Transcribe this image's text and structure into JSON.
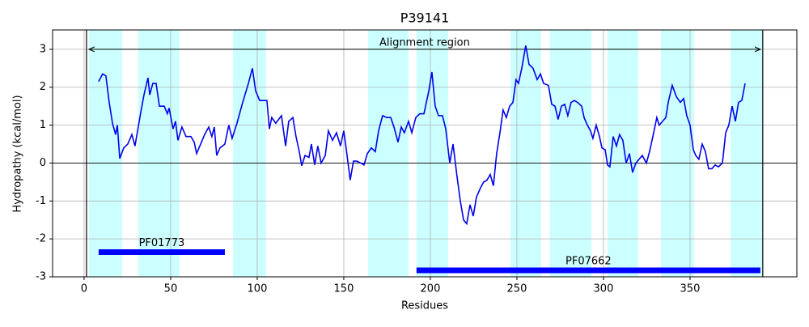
{
  "chart_data": {
    "type": "line",
    "title": "P39141",
    "xlabel": "Residues",
    "ylabel": "Hydropathy (kcal/mol)",
    "xlim": [
      -18.2,
      411.7
    ],
    "ylim": [
      -3,
      3.51
    ],
    "xticks": [
      0,
      50,
      100,
      150,
      200,
      250,
      300,
      350
    ],
    "yticks": [
      -3,
      -2,
      -1,
      0,
      1,
      2,
      3
    ],
    "grid": true,
    "x": [
      8.4,
      10.7,
      12.6,
      14.5,
      16.4,
      18.2,
      19.2,
      20.6,
      22.9,
      25.2,
      27.6,
      29.4,
      32.2,
      34.6,
      36.9,
      37.9,
      39.7,
      41.6,
      43.5,
      46.3,
      48.1,
      49.1,
      51.4,
      52.8,
      54.2,
      56.5,
      58.9,
      61.7,
      63.6,
      65,
      67.3,
      69.6,
      72,
      73.8,
      75.2,
      76.6,
      78.5,
      81.3,
      83.6,
      85.5,
      88.3,
      91.6,
      94.9,
      97.2,
      99.1,
      101.4,
      105.6,
      107,
      108.4,
      110.7,
      114,
      116.4,
      118.2,
      120.6,
      122.4,
      124.3,
      125.7,
      127.6,
      129.9,
      131.3,
      133.2,
      135,
      136.9,
      139.3,
      141.1,
      143.5,
      145.8,
      148.1,
      150,
      151.9,
      153.7,
      155.6,
      157.5,
      159.8,
      161.7,
      163.6,
      165.9,
      168.2,
      170.1,
      172.4,
      174.8,
      177.1,
      179,
      181.3,
      183.2,
      185,
      187.4,
      189.3,
      191.6,
      193.9,
      196.3,
      199.1,
      200.9,
      202.8,
      204.7,
      207,
      208.9,
      211.2,
      213.1,
      215.4,
      217.3,
      219.2,
      221,
      222.9,
      224.8,
      226.6,
      229,
      230.8,
      232.7,
      234.6,
      236.4,
      238.3,
      240.2,
      242,
      243.9,
      245.8,
      247.7,
      249.5,
      250.9,
      252.8,
      255.1,
      257,
      259.3,
      261.7,
      263.6,
      265.4,
      268.2,
      270.1,
      272,
      273.8,
      275.7,
      277.6,
      279.4,
      281.3,
      283.2,
      285,
      287.4,
      288.8,
      290.7,
      292.5,
      293.9,
      295.8,
      297.7,
      299.1,
      301,
      302.3,
      303.7,
      305.6,
      307.5,
      309.3,
      311.2,
      313.1,
      315,
      316.8,
      318.7,
      320.6,
      322.4,
      324.8,
      326.6,
      329,
      330.8,
      332.2,
      334.1,
      336,
      337.4,
      339.7,
      342.1,
      344.4,
      346.3,
      348.1,
      350,
      351.9,
      353.3,
      355.1,
      357,
      358.9,
      360.7,
      362.6,
      364.5,
      366.4,
      368.7,
      370.6,
      372.4,
      374.3,
      376.2,
      378,
      379.9,
      381.8
    ],
    "series": [
      {
        "color": "#0000ee",
        "values": [
          2.15,
          2.35,
          2.3,
          1.6,
          1.05,
          0.75,
          1.0,
          0.12,
          0.4,
          0.5,
          0.75,
          0.45,
          1.2,
          1.8,
          2.25,
          1.8,
          2.1,
          2.1,
          1.5,
          1.5,
          1.3,
          1.45,
          0.9,
          1.1,
          0.6,
          0.95,
          0.7,
          0.7,
          0.55,
          0.25,
          0.5,
          0.75,
          0.95,
          0.7,
          0.95,
          0.2,
          0.4,
          0.5,
          1.0,
          0.65,
          1.05,
          1.6,
          2.1,
          2.5,
          1.9,
          1.65,
          1.65,
          0.9,
          1.2,
          1.05,
          1.25,
          0.45,
          1.1,
          1.2,
          0.7,
          0.3,
          -0.07,
          0.2,
          0.15,
          0.5,
          -0.05,
          0.45,
          0.0,
          0.2,
          0.85,
          0.6,
          0.8,
          0.45,
          0.85,
          0.2,
          -0.45,
          0.05,
          0.05,
          0.0,
          -0.05,
          0.25,
          0.4,
          0.3,
          0.85,
          1.25,
          1.2,
          1.2,
          0.95,
          0.55,
          0.95,
          0.8,
          1.1,
          0.8,
          1.2,
          1.3,
          1.3,
          1.9,
          2.4,
          1.5,
          1.25,
          1.25,
          0.9,
          0.0,
          0.5,
          -0.35,
          -1.0,
          -1.5,
          -1.6,
          -1.1,
          -1.4,
          -0.9,
          -0.65,
          -0.5,
          -0.45,
          -0.3,
          -0.6,
          0.25,
          0.8,
          1.4,
          1.2,
          1.5,
          1.6,
          2.2,
          2.1,
          2.5,
          3.1,
          2.6,
          2.5,
          2.2,
          2.35,
          2.1,
          2.05,
          1.55,
          1.5,
          1.15,
          1.5,
          1.55,
          1.25,
          1.6,
          1.65,
          1.6,
          1.5,
          1.2,
          1.0,
          0.85,
          0.65,
          1.0,
          0.7,
          0.4,
          0.35,
          -0.05,
          -0.1,
          0.7,
          0.45,
          0.75,
          0.6,
          0.0,
          0.25,
          -0.25,
          0.0,
          0.1,
          0.2,
          0.0,
          0.3,
          0.8,
          1.2,
          1.0,
          1.1,
          1.2,
          1.6,
          2.05,
          1.75,
          1.6,
          1.7,
          1.25,
          1.0,
          0.35,
          0.2,
          0.1,
          0.5,
          0.3,
          -0.15,
          -0.15,
          -0.05,
          -0.1,
          0.0,
          0.8,
          1.0,
          1.5,
          1.1,
          1.6,
          1.65,
          2.1
        ]
      }
    ],
    "regions_color": "#ccffff",
    "regions": [
      {
        "start": 2.8,
        "end": 22
      },
      {
        "start": 31.3,
        "end": 55.1
      },
      {
        "start": 86,
        "end": 105.1
      },
      {
        "start": 164,
        "end": 187.4
      },
      {
        "start": 192,
        "end": 210.3
      },
      {
        "start": 246.3,
        "end": 264
      },
      {
        "start": 269,
        "end": 293
      },
      {
        "start": 302.3,
        "end": 320
      },
      {
        "start": 333.2,
        "end": 352.3
      },
      {
        "start": 373.4,
        "end": 392
      }
    ],
    "alignment": {
      "label": "Alignment region",
      "start": 1.4,
      "end": 392,
      "y": 3
    },
    "domains_color": "#0000ff",
    "domains": [
      {
        "name": "PF01773",
        "start": 8.4,
        "end": 81.3,
        "y": -2.35
      },
      {
        "name": "PF07662",
        "start": 192,
        "end": 390.6,
        "y": -2.83
      }
    ]
  }
}
